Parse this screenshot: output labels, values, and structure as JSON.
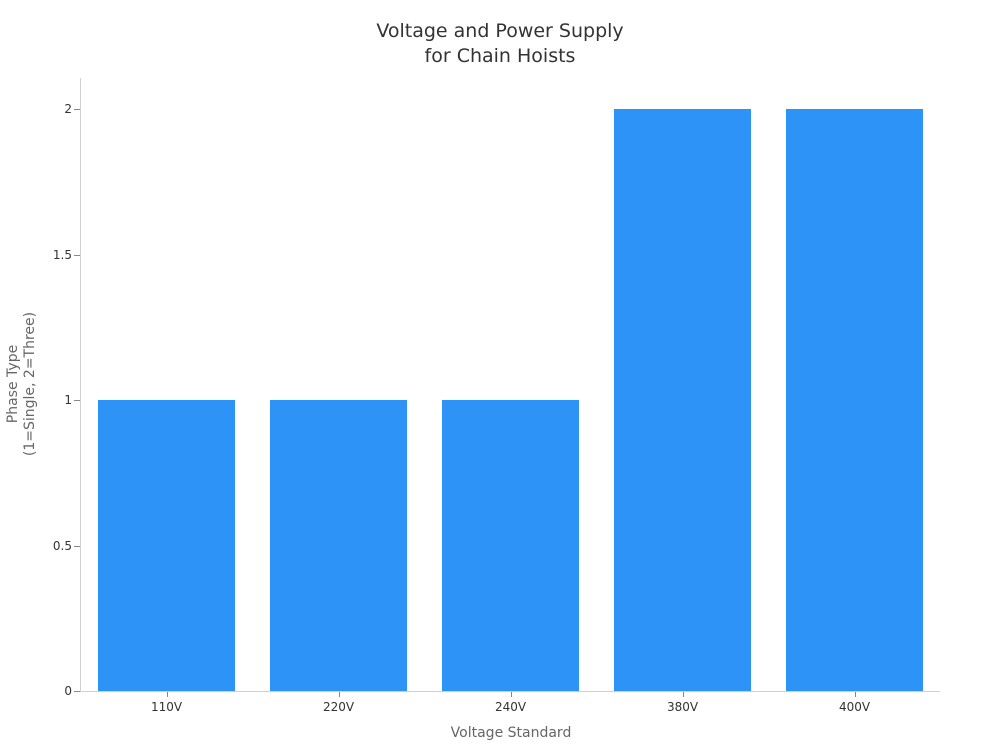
{
  "chart_data": {
    "type": "bar",
    "title": "Voltage and Power Supply for Chain Hoists",
    "title_lines": [
      "Voltage and Power Supply",
      "for Chain Hoists"
    ],
    "xlabel": "Voltage Standard",
    "ylabel": "Phase Type (1=Single, 2=Three)",
    "ylabel_lines": [
      "Phase Type",
      "(1=Single, 2=Three)"
    ],
    "categories": [
      "110V",
      "220V",
      "240V",
      "380V",
      "400V"
    ],
    "values": [
      1,
      1,
      1,
      2,
      2
    ],
    "ylim": [
      0,
      2.1
    ],
    "yticks": [
      "0",
      "0.5",
      "1",
      "1.5",
      "2"
    ],
    "grid": false,
    "legend": null,
    "bar_color": "#2e93f6"
  }
}
